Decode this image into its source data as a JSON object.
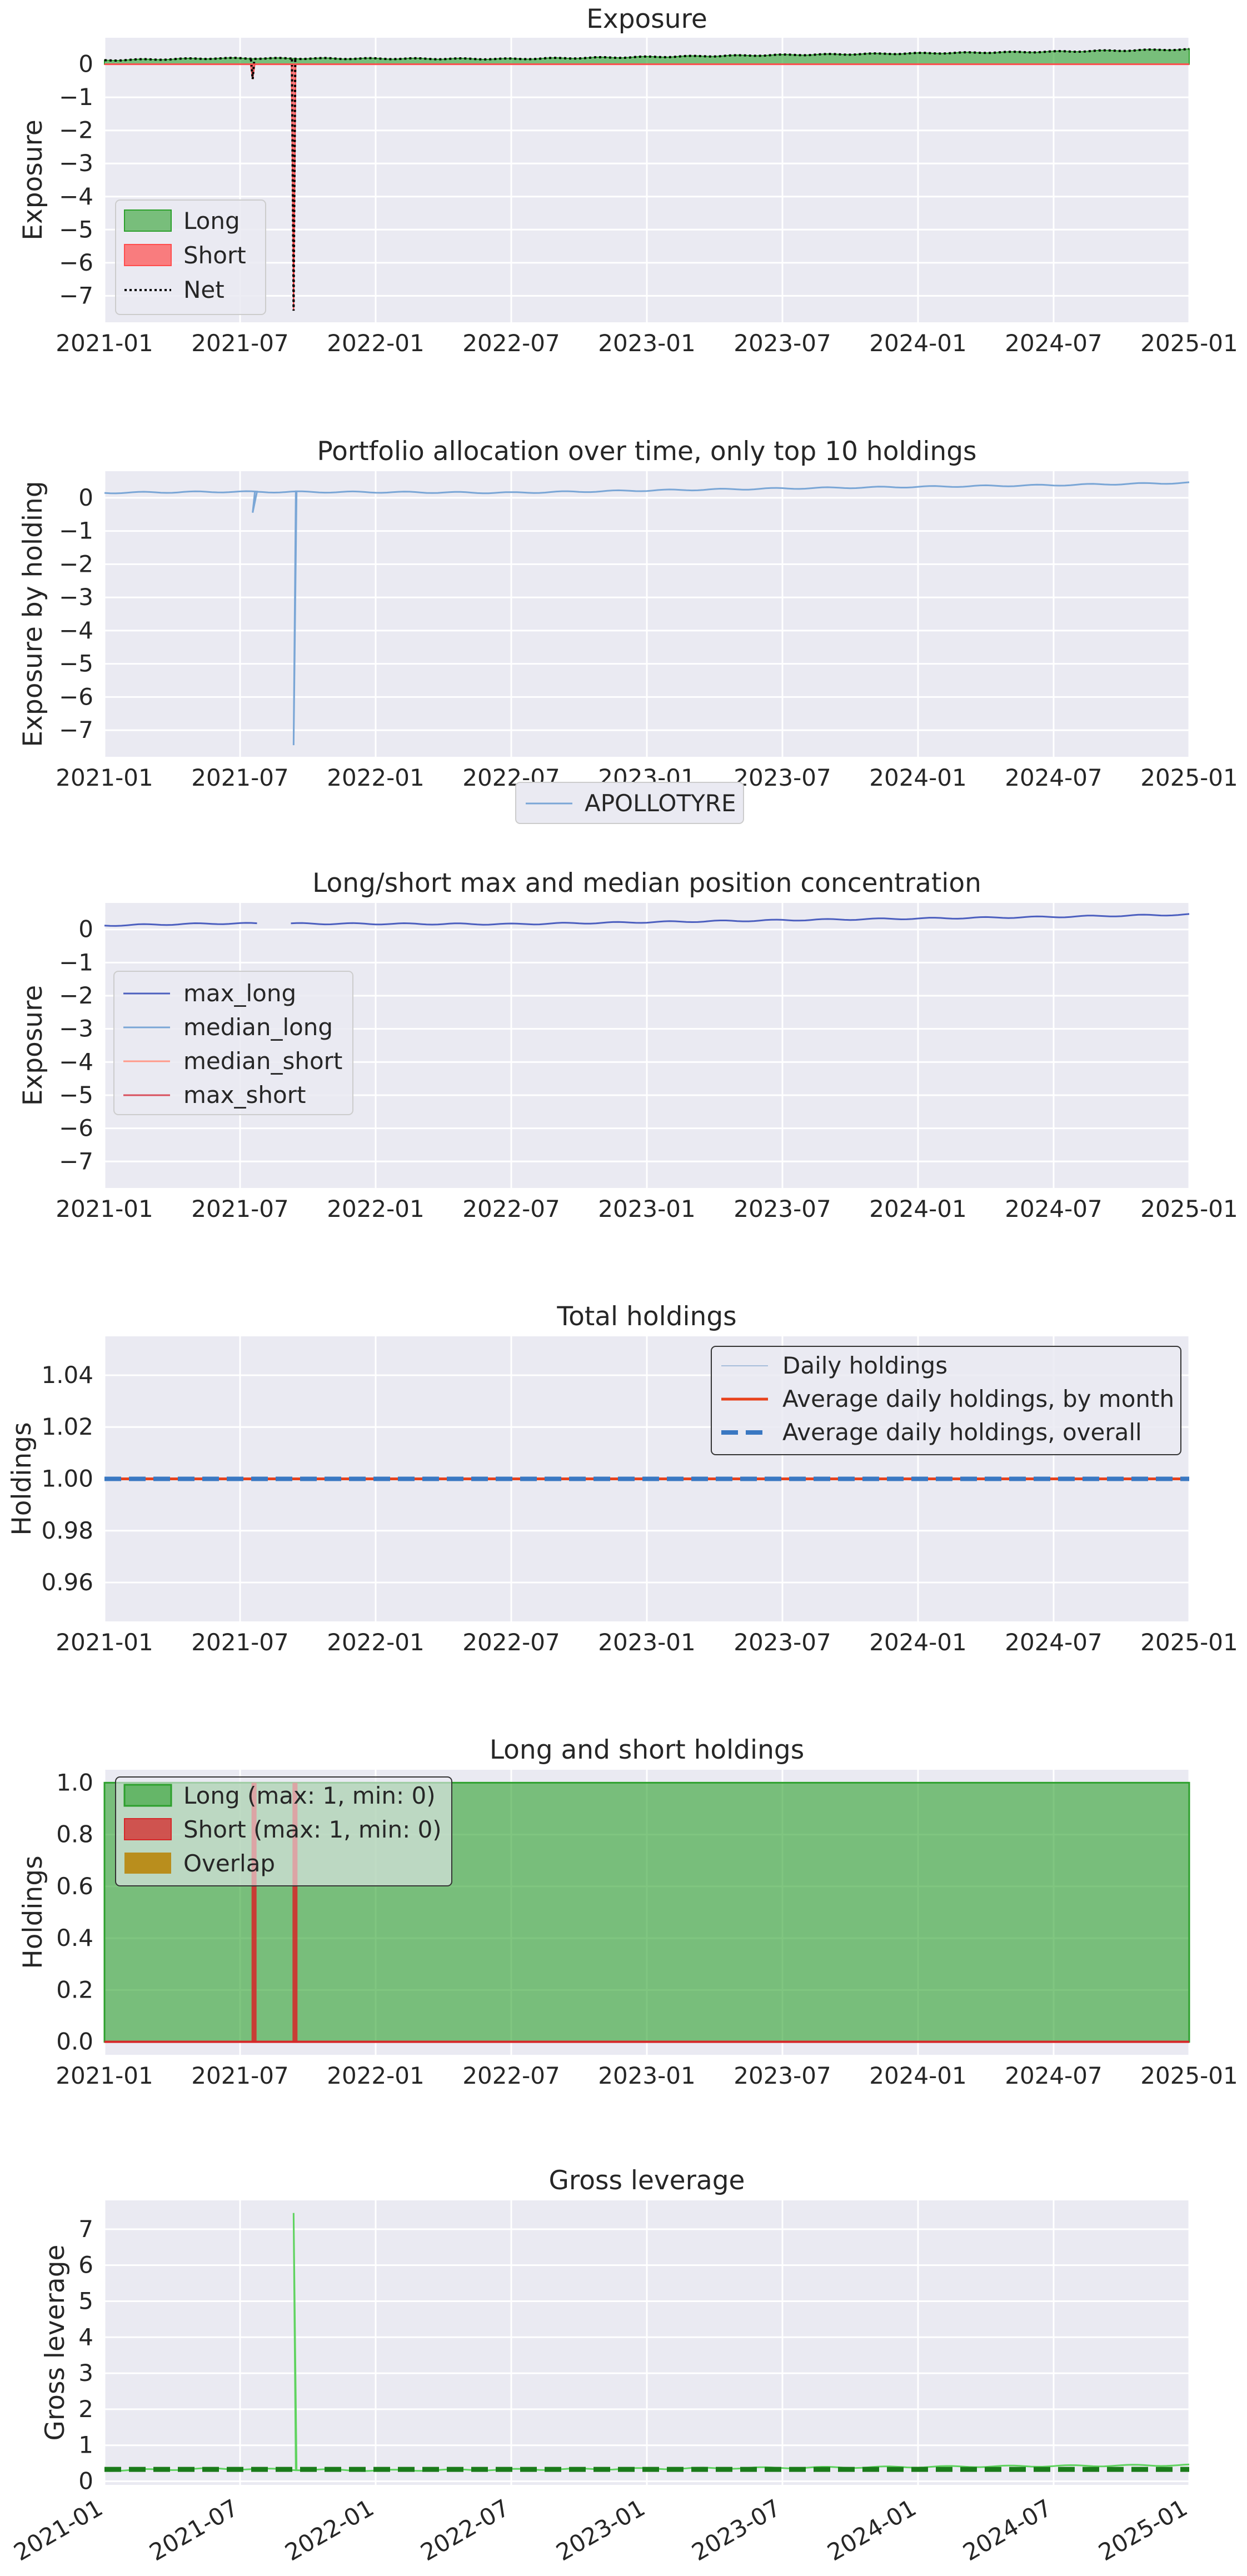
{
  "chart_data": [
    {
      "type": "area",
      "title": "Exposure",
      "ylabel": "Exposure",
      "ylim": [
        -7.8,
        0.8
      ],
      "yticks": [
        0,
        -1,
        -2,
        -3,
        -4,
        -5,
        -6,
        -7
      ],
      "ytick_labels": [
        "0",
        "−1",
        "−2",
        "−3",
        "−4",
        "−5",
        "−6",
        "−7"
      ],
      "x_ticks": [
        "2021-01",
        "2021-07",
        "2022-01",
        "2022-07",
        "2023-01",
        "2023-07",
        "2024-01",
        "2024-07",
        "2025-01"
      ],
      "legend": [
        "Long",
        "Short",
        "Net"
      ],
      "legend_position": "lower-left",
      "colors": {
        "long": "#2ca02c",
        "short": "#ff4d4d",
        "net": "#000000"
      },
      "series": [
        {
          "name": "Long",
          "x": [
            "2021-01",
            "2021-06",
            "2022-01",
            "2022-07",
            "2023-01",
            "2023-07",
            "2024-01",
            "2024-07",
            "2025-01"
          ],
          "values": [
            0.12,
            0.18,
            0.17,
            0.16,
            0.22,
            0.28,
            0.33,
            0.38,
            0.45
          ]
        },
        {
          "name": "Short",
          "x": [
            "2021-08",
            "2021-09"
          ],
          "values": [
            -0.45,
            -7.45
          ]
        },
        {
          "name": "Net",
          "x": [
            "2021-01",
            "2021-08",
            "2021-09",
            "2022-01",
            "2023-01",
            "2024-01",
            "2025-01"
          ],
          "values": [
            0.12,
            -0.45,
            -7.45,
            0.17,
            0.22,
            0.33,
            0.45
          ]
        }
      ]
    },
    {
      "type": "line",
      "title": "Portfolio allocation over time, only top 10 holdings",
      "ylabel": "Exposure by holding",
      "ylim": [
        -7.8,
        0.8
      ],
      "yticks": [
        0,
        -1,
        -2,
        -3,
        -4,
        -5,
        -6,
        -7
      ],
      "ytick_labels": [
        "0",
        "−1",
        "−2",
        "−3",
        "−4",
        "−5",
        "−6",
        "−7"
      ],
      "x_ticks": [
        "2021-01",
        "2021-07",
        "2022-01",
        "2022-07",
        "2023-01",
        "2023-07",
        "2024-01",
        "2024-07",
        "2025-01"
      ],
      "legend": [
        "APOLLOTYRE"
      ],
      "legend_position": "below",
      "colors": {
        "series": "#7aa6d6"
      },
      "series": [
        {
          "name": "APOLLOTYRE",
          "x": [
            "2021-01",
            "2021-08",
            "2021-09",
            "2022-01",
            "2023-01",
            "2024-01",
            "2025-01"
          ],
          "values": [
            0.15,
            -0.45,
            -7.45,
            0.17,
            0.22,
            0.33,
            0.45
          ]
        }
      ]
    },
    {
      "type": "line",
      "title": "Long/short max and median position concentration",
      "ylabel": "Exposure",
      "ylim": [
        -7.8,
        0.8
      ],
      "yticks": [
        0,
        -1,
        -2,
        -3,
        -4,
        -5,
        -6,
        -7
      ],
      "ytick_labels": [
        "0",
        "−1",
        "−2",
        "−3",
        "−4",
        "−5",
        "−6",
        "−7"
      ],
      "x_ticks": [
        "2021-01",
        "2021-07",
        "2022-01",
        "2022-07",
        "2023-01",
        "2023-07",
        "2024-01",
        "2024-07",
        "2025-01"
      ],
      "legend": [
        "max_long",
        "median_long",
        "median_short",
        "max_short"
      ],
      "legend_position": "center-left",
      "colors": {
        "max_long": "#4c5fbf",
        "median_long": "#7aa6d6",
        "median_short": "#ff9a8a",
        "max_short": "#d94f5c"
      },
      "series": [
        {
          "name": "max_long",
          "x": [
            "2021-01",
            "2021-06",
            "2022-01",
            "2022-07",
            "2023-01",
            "2023-07",
            "2024-01",
            "2024-07",
            "2025-01"
          ],
          "values": [
            0.12,
            0.18,
            0.17,
            0.16,
            0.22,
            0.28,
            0.33,
            0.38,
            0.45
          ]
        }
      ]
    },
    {
      "type": "line",
      "title": "Total holdings",
      "ylabel": "Holdings",
      "ylim": [
        0.945,
        1.055
      ],
      "yticks": [
        0.96,
        0.98,
        1.0,
        1.02,
        1.04
      ],
      "ytick_labels": [
        "0.96",
        "0.98",
        "1.00",
        "1.02",
        "1.04"
      ],
      "x_ticks": [
        "2021-01",
        "2021-07",
        "2022-01",
        "2022-07",
        "2023-01",
        "2023-07",
        "2024-01",
        "2024-07",
        "2025-01"
      ],
      "legend": [
        "Daily holdings",
        "Average daily holdings, by month",
        "Average daily holdings, overall"
      ],
      "legend_position": "upper-right",
      "colors": {
        "daily": "#a6bddb",
        "monthly": "#e8421c",
        "overall": "#3a78c2"
      },
      "series": [
        {
          "name": "Daily holdings",
          "x": [
            "2021-01",
            "2025-01"
          ],
          "values": [
            1.0,
            1.0
          ]
        },
        {
          "name": "Average daily holdings, by month",
          "x": [
            "2021-01",
            "2025-01"
          ],
          "values": [
            1.0,
            1.0
          ]
        },
        {
          "name": "Average daily holdings, overall",
          "x": [
            "2021-01",
            "2025-01"
          ],
          "values": [
            1.0,
            1.0
          ]
        }
      ]
    },
    {
      "type": "area",
      "title": "Long and short holdings",
      "ylabel": "Holdings",
      "ylim": [
        -0.05,
        1.05
      ],
      "yticks": [
        0.0,
        0.2,
        0.4,
        0.6,
        0.8,
        1.0
      ],
      "ytick_labels": [
        "0.0",
        "0.2",
        "0.4",
        "0.6",
        "0.8",
        "1.0"
      ],
      "x_ticks": [
        "2021-01",
        "2021-07",
        "2022-01",
        "2022-07",
        "2023-01",
        "2023-07",
        "2024-01",
        "2024-07",
        "2025-01"
      ],
      "legend": [
        "Long (max: 1, min: 0)",
        "Short (max: 1, min: 0)",
        "Overlap"
      ],
      "legend_position": "upper-left",
      "colors": {
        "long": "#2ca02c",
        "short": "#d62728",
        "overlap": "#b8860b"
      },
      "series": [
        {
          "name": "Long (max: 1, min: 0)",
          "x": [
            "2021-01",
            "2025-01"
          ],
          "values": [
            1,
            1
          ]
        },
        {
          "name": "Short (max: 1, min: 0)",
          "x": [
            "2021-08",
            "2021-09"
          ],
          "values": [
            1,
            1
          ]
        }
      ]
    },
    {
      "type": "line",
      "title": "Gross leverage",
      "ylabel": "Gross leverage",
      "ylim": [
        -0.1,
        7.8
      ],
      "yticks": [
        0,
        1,
        2,
        3,
        4,
        5,
        6,
        7
      ],
      "ytick_labels": [
        "0",
        "1",
        "2",
        "3",
        "4",
        "5",
        "6",
        "7"
      ],
      "x_ticks": [
        "2021-01",
        "2021-07",
        "2022-01",
        "2022-07",
        "2023-01",
        "2023-07",
        "2024-01",
        "2024-07",
        "2025-01"
      ],
      "colors": {
        "line": "#5fd35f",
        "mean": "#1a7a1a"
      },
      "series": [
        {
          "x": [
            "2021-01",
            "2021-06",
            "2021-09",
            "2022-01",
            "2023-01",
            "2024-01",
            "2025-01"
          ],
          "values": [
            0.3,
            0.35,
            7.45,
            0.3,
            0.35,
            0.4,
            0.45
          ]
        },
        {
          "x": [
            "2021-01",
            "2025-01"
          ],
          "values": [
            0.33,
            0.33
          ]
        }
      ]
    }
  ]
}
